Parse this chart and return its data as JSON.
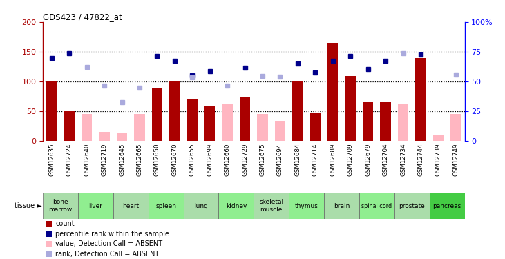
{
  "title": "GDS423 / 47822_at",
  "samples": [
    "GSM12635",
    "GSM12724",
    "GSM12640",
    "GSM12719",
    "GSM12645",
    "GSM12665",
    "GSM12650",
    "GSM12670",
    "GSM12655",
    "GSM12699",
    "GSM12660",
    "GSM12729",
    "GSM12675",
    "GSM12694",
    "GSM12684",
    "GSM12714",
    "GSM12689",
    "GSM12709",
    "GSM12679",
    "GSM12704",
    "GSM12734",
    "GSM12744",
    "GSM12739",
    "GSM12749"
  ],
  "count_present": [
    100,
    52,
    null,
    null,
    null,
    null,
    90,
    100,
    70,
    58,
    null,
    75,
    null,
    null,
    100,
    47,
    165,
    110,
    65,
    65,
    null,
    140,
    null,
    null
  ],
  "count_absent": [
    null,
    null,
    46,
    15,
    13,
    46,
    null,
    null,
    null,
    null,
    62,
    null,
    46,
    34,
    null,
    null,
    null,
    null,
    null,
    null,
    62,
    null,
    10,
    46
  ],
  "rank_present": [
    139,
    148,
    null,
    null,
    null,
    null,
    143,
    135,
    111,
    117,
    null,
    123,
    null,
    null,
    130,
    115,
    135,
    143,
    121,
    135,
    null,
    145,
    null,
    null
  ],
  "rank_absent": [
    null,
    null,
    125,
    93,
    65,
    90,
    null,
    null,
    107,
    null,
    93,
    null,
    110,
    108,
    null,
    null,
    null,
    null,
    null,
    null,
    148,
    null,
    null,
    112
  ],
  "tissues": [
    {
      "name": "bone\nmarrow",
      "start": 0,
      "end": 1,
      "color": "#aaddaa"
    },
    {
      "name": "liver",
      "start": 2,
      "end": 3,
      "color": "#90ee90"
    },
    {
      "name": "heart",
      "start": 4,
      "end": 5,
      "color": "#aaddaa"
    },
    {
      "name": "spleen",
      "start": 6,
      "end": 7,
      "color": "#90ee90"
    },
    {
      "name": "lung",
      "start": 8,
      "end": 9,
      "color": "#aaddaa"
    },
    {
      "name": "kidney",
      "start": 10,
      "end": 11,
      "color": "#90ee90"
    },
    {
      "name": "skeletal\nmuscle",
      "start": 12,
      "end": 13,
      "color": "#aaddaa"
    },
    {
      "name": "thymus",
      "start": 14,
      "end": 15,
      "color": "#90ee90"
    },
    {
      "name": "brain",
      "start": 16,
      "end": 17,
      "color": "#aaddaa"
    },
    {
      "name": "spinal cord",
      "start": 18,
      "end": 19,
      "color": "#90ee90"
    },
    {
      "name": "prostate",
      "start": 20,
      "end": 21,
      "color": "#aaddaa"
    },
    {
      "name": "pancreas",
      "start": 22,
      "end": 23,
      "color": "#44cc44"
    }
  ],
  "xbg_color": "#c8c8c8",
  "bar_present_color": "#aa0000",
  "bar_absent_color": "#ffb6c1",
  "rank_present_color": "#00008b",
  "rank_absent_color": "#aaaadd",
  "yticks_left": [
    0,
    50,
    100,
    150,
    200
  ],
  "yticks_right": [
    0,
    25,
    50,
    75,
    100
  ],
  "dotted_lines": [
    50,
    100,
    150
  ],
  "legend_labels": [
    "count",
    "percentile rank within the sample",
    "value, Detection Call = ABSENT",
    "rank, Detection Call = ABSENT"
  ],
  "legend_colors": [
    "#aa0000",
    "#00008b",
    "#ffb6c1",
    "#aaaadd"
  ]
}
